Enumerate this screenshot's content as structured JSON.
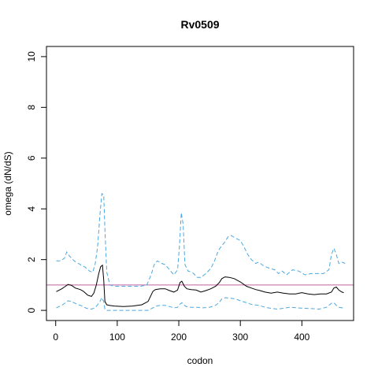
{
  "chart_data": {
    "type": "line",
    "title": "Rv0509",
    "xlabel": "codon",
    "ylabel": "omega (dN/dS)",
    "xlim": [
      -15,
      484
    ],
    "ylim": [
      -0.4,
      10.4
    ],
    "xticks": [
      0,
      100,
      200,
      300,
      400
    ],
    "yticks": [
      0,
      2,
      4,
      6,
      8,
      10
    ],
    "grid": false,
    "reference_line": {
      "y": 1,
      "color": "#c060a0"
    },
    "series": [
      {
        "role": "estimate",
        "style": "solid",
        "color": "#000000",
        "x": [
          1,
          10,
          16,
          20,
          26,
          32,
          40,
          45,
          52,
          58,
          62,
          66,
          70,
          73,
          76,
          78,
          80,
          83,
          87,
          95,
          110,
          125,
          140,
          150,
          158,
          162,
          170,
          178,
          185,
          192,
          198,
          202,
          205,
          209,
          213,
          220,
          228,
          236,
          244,
          252,
          260,
          266,
          270,
          275,
          282,
          290,
          300,
          310,
          318,
          325,
          332,
          340,
          350,
          360,
          370,
          380,
          390,
          400,
          410,
          420,
          430,
          440,
          448,
          452,
          456,
          460,
          465,
          468
        ],
        "y": [
          0.74,
          0.85,
          0.95,
          1.02,
          0.98,
          0.88,
          0.82,
          0.75,
          0.6,
          0.55,
          0.68,
          1.0,
          1.45,
          1.72,
          1.78,
          1.2,
          0.35,
          0.22,
          0.2,
          0.17,
          0.15,
          0.17,
          0.22,
          0.35,
          0.75,
          0.82,
          0.85,
          0.85,
          0.78,
          0.72,
          0.8,
          1.1,
          1.15,
          0.95,
          0.85,
          0.82,
          0.8,
          0.72,
          0.78,
          0.85,
          0.95,
          1.1,
          1.25,
          1.32,
          1.3,
          1.25,
          1.12,
          0.95,
          0.88,
          0.82,
          0.78,
          0.72,
          0.68,
          0.72,
          0.68,
          0.65,
          0.65,
          0.7,
          0.65,
          0.62,
          0.65,
          0.65,
          0.72,
          0.88,
          0.92,
          0.8,
          0.72,
          0.7
        ]
      },
      {
        "role": "upper",
        "style": "dashed",
        "color": "#4aa8e0",
        "x": [
          1,
          8,
          14,
          18,
          22,
          30,
          40,
          48,
          55,
          60,
          64,
          68,
          72,
          75,
          78,
          80,
          83,
          88,
          95,
          110,
          125,
          138,
          148,
          155,
          160,
          165,
          172,
          178,
          185,
          192,
          198,
          201,
          204,
          207,
          210,
          215,
          222,
          230,
          236,
          244,
          252,
          258,
          264,
          270,
          275,
          280,
          285,
          292,
          300,
          306,
          312,
          318,
          325,
          330,
          338,
          348,
          356,
          362,
          368,
          375,
          385,
          395,
          405,
          415,
          425,
          435,
          444,
          448,
          452,
          456,
          460,
          465,
          470
        ],
        "y": [
          1.95,
          1.95,
          2.05,
          2.3,
          2.15,
          1.95,
          1.8,
          1.7,
          1.55,
          1.5,
          1.8,
          2.5,
          3.8,
          4.6,
          4.55,
          3.2,
          1.5,
          1.0,
          0.95,
          0.95,
          0.95,
          0.95,
          1.0,
          1.4,
          1.8,
          1.95,
          1.85,
          1.8,
          1.6,
          1.4,
          1.6,
          2.5,
          3.85,
          3.4,
          1.8,
          1.55,
          1.5,
          1.3,
          1.3,
          1.45,
          1.65,
          1.95,
          2.35,
          2.55,
          2.7,
          2.9,
          2.95,
          2.85,
          2.75,
          2.5,
          2.2,
          2.0,
          1.85,
          1.9,
          1.75,
          1.65,
          1.6,
          1.45,
          1.55,
          1.4,
          1.6,
          1.55,
          1.4,
          1.45,
          1.45,
          1.45,
          1.6,
          2.2,
          2.45,
          2.2,
          1.85,
          1.9,
          1.85
        ]
      },
      {
        "role": "lower",
        "style": "dashed",
        "color": "#4aa8e0",
        "x": [
          1,
          10,
          16,
          20,
          26,
          34,
          42,
          50,
          58,
          64,
          68,
          72,
          75,
          78,
          80,
          82,
          90,
          110,
          130,
          150,
          158,
          165,
          172,
          178,
          185,
          192,
          198,
          202,
          205,
          208,
          212,
          220,
          230,
          240,
          250,
          260,
          266,
          270,
          276,
          284,
          292,
          300,
          310,
          320,
          330,
          340,
          350,
          360,
          370,
          380,
          392,
          404,
          416,
          428,
          440,
          448,
          452,
          456,
          460,
          465,
          468
        ],
        "y": [
          0.1,
          0.2,
          0.3,
          0.38,
          0.35,
          0.25,
          0.18,
          0.08,
          0.05,
          0.1,
          0.22,
          0.35,
          0.5,
          0.35,
          0.05,
          0.0,
          0.0,
          0.0,
          0.0,
          0.0,
          0.1,
          0.18,
          0.2,
          0.2,
          0.15,
          0.1,
          0.12,
          0.25,
          0.3,
          0.22,
          0.15,
          0.12,
          0.12,
          0.1,
          0.12,
          0.2,
          0.32,
          0.45,
          0.5,
          0.48,
          0.45,
          0.38,
          0.3,
          0.22,
          0.2,
          0.12,
          0.08,
          0.05,
          0.08,
          0.12,
          0.1,
          0.08,
          0.07,
          0.05,
          0.12,
          0.28,
          0.3,
          0.2,
          0.12,
          0.1,
          0.08
        ]
      }
    ]
  }
}
